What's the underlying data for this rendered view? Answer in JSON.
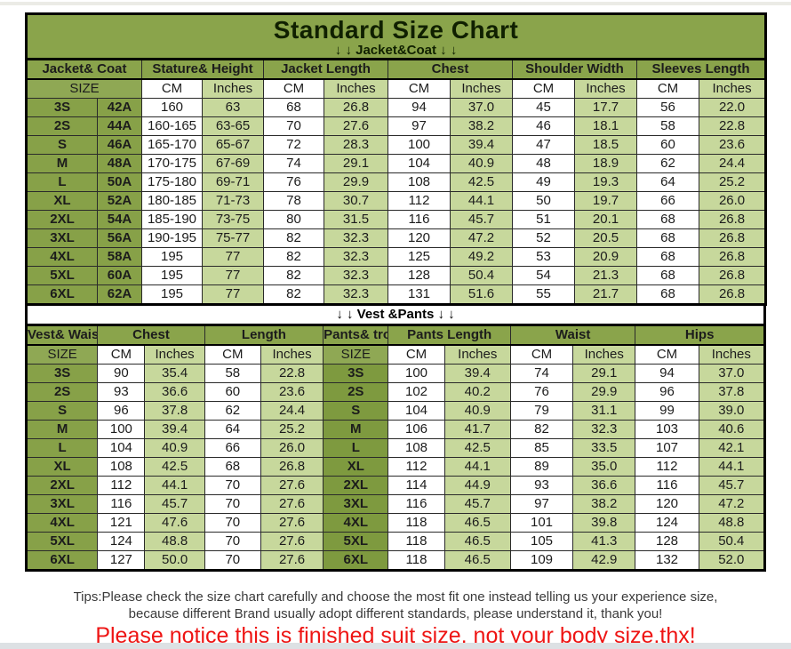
{
  "title": "Standard Size Chart",
  "colors": {
    "header_green": "#8aa44b",
    "size_cell_green": "#87a148",
    "size_cell_dark_green": "#7e9a3f",
    "inches_cell_green": "#c7d89c",
    "cm_cell_white": "#ffffff",
    "border_black": "#000000",
    "notice_red": "#ee1413"
  },
  "chart_data": [
    {
      "type": "table",
      "name": "jacket-coat-size-table",
      "divider": "↓ ↓  Jacket&Coat ↓ ↓",
      "group_headers": [
        "Jacket&\nCoat",
        "Stature&\nHeight",
        "Jacket\nLength",
        "Chest",
        "Shoulder\nWidth",
        "Sleeves\nLength"
      ],
      "units": [
        "SIZE",
        "CM",
        "Inches",
        "CM",
        "Inches",
        "CM",
        "Inches",
        "CM",
        "Inches",
        "CM",
        "Inches"
      ],
      "rows": [
        [
          "3S",
          "42A",
          "160",
          "63",
          "68",
          "26.8",
          "94",
          "37.0",
          "45",
          "17.7",
          "56",
          "22.0"
        ],
        [
          "2S",
          "44A",
          "160-165",
          "63-65",
          "70",
          "27.6",
          "97",
          "38.2",
          "46",
          "18.1",
          "58",
          "22.8"
        ],
        [
          "S",
          "46A",
          "165-170",
          "65-67",
          "72",
          "28.3",
          "100",
          "39.4",
          "47",
          "18.5",
          "60",
          "23.6"
        ],
        [
          "M",
          "48A",
          "170-175",
          "67-69",
          "74",
          "29.1",
          "104",
          "40.9",
          "48",
          "18.9",
          "62",
          "24.4"
        ],
        [
          "L",
          "50A",
          "175-180",
          "69-71",
          "76",
          "29.9",
          "108",
          "42.5",
          "49",
          "19.3",
          "64",
          "25.2"
        ],
        [
          "XL",
          "52A",
          "180-185",
          "71-73",
          "78",
          "30.7",
          "112",
          "44.1",
          "50",
          "19.7",
          "66",
          "26.0"
        ],
        [
          "2XL",
          "54A",
          "185-190",
          "73-75",
          "80",
          "31.5",
          "116",
          "45.7",
          "51",
          "20.1",
          "68",
          "26.8"
        ],
        [
          "3XL",
          "56A",
          "190-195",
          "75-77",
          "82",
          "32.3",
          "120",
          "47.2",
          "52",
          "20.5",
          "68",
          "26.8"
        ],
        [
          "4XL",
          "58A",
          "195",
          "77",
          "82",
          "32.3",
          "125",
          "49.2",
          "53",
          "20.9",
          "68",
          "26.8"
        ],
        [
          "5XL",
          "60A",
          "195",
          "77",
          "82",
          "32.3",
          "128",
          "50.4",
          "54",
          "21.3",
          "68",
          "26.8"
        ],
        [
          "6XL",
          "62A",
          "195",
          "77",
          "82",
          "32.3",
          "131",
          "51.6",
          "55",
          "21.7",
          "68",
          "26.8"
        ]
      ]
    },
    {
      "type": "table",
      "name": "vest-pants-size-table",
      "divider": "↓ ↓  Vest &Pants ↓ ↓",
      "group_headers": [
        "Vest&\nWaistcoat",
        "Chest",
        "Length",
        "Pants&\ntrousers",
        "Pants\nLength",
        "Waist",
        "Hips"
      ],
      "units": [
        "SIZE",
        "CM",
        "Inches",
        "CM",
        "Inches",
        "SIZE",
        "CM",
        "Inches",
        "CM",
        "Inches",
        "CM",
        "Inches"
      ],
      "rows": [
        [
          "3S",
          "90",
          "35.4",
          "58",
          "22.8",
          "3S",
          "100",
          "39.4",
          "74",
          "29.1",
          "94",
          "37.0"
        ],
        [
          "2S",
          "93",
          "36.6",
          "60",
          "23.6",
          "2S",
          "102",
          "40.2",
          "76",
          "29.9",
          "96",
          "37.8"
        ],
        [
          "S",
          "96",
          "37.8",
          "62",
          "24.4",
          "S",
          "104",
          "40.9",
          "79",
          "31.1",
          "99",
          "39.0"
        ],
        [
          "M",
          "100",
          "39.4",
          "64",
          "25.2",
          "M",
          "106",
          "41.7",
          "82",
          "32.3",
          "103",
          "40.6"
        ],
        [
          "L",
          "104",
          "40.9",
          "66",
          "26.0",
          "L",
          "108",
          "42.5",
          "85",
          "33.5",
          "107",
          "42.1"
        ],
        [
          "XL",
          "108",
          "42.5",
          "68",
          "26.8",
          "XL",
          "112",
          "44.1",
          "89",
          "35.0",
          "112",
          "44.1"
        ],
        [
          "2XL",
          "112",
          "44.1",
          "70",
          "27.6",
          "2XL",
          "114",
          "44.9",
          "93",
          "36.6",
          "116",
          "45.7"
        ],
        [
          "3XL",
          "116",
          "45.7",
          "70",
          "27.6",
          "3XL",
          "116",
          "45.7",
          "97",
          "38.2",
          "120",
          "47.2"
        ],
        [
          "4XL",
          "121",
          "47.6",
          "70",
          "27.6",
          "4XL",
          "118",
          "46.5",
          "101",
          "39.8",
          "124",
          "48.8"
        ],
        [
          "5XL",
          "124",
          "48.8",
          "70",
          "27.6",
          "5XL",
          "118",
          "46.5",
          "105",
          "41.3",
          "128",
          "50.4"
        ],
        [
          "6XL",
          "127",
          "50.0",
          "70",
          "27.6",
          "6XL",
          "118",
          "46.5",
          "109",
          "42.9",
          "132",
          "52.0"
        ]
      ]
    }
  ],
  "footer": {
    "tips_line1": "Tips:Please check the size chart carefully and choose the most fit one instead telling us your experience size,",
    "tips_line2": "because different Brand usually adopt different standards, please understand it, thank you!",
    "notice": "Please notice this is finished suit size, not your body size,thx!"
  }
}
